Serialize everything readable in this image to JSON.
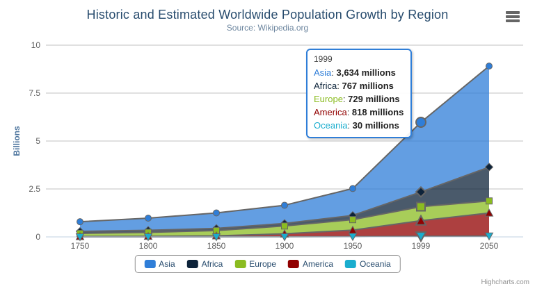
{
  "chart_data": {
    "type": "area",
    "stacking": "normal",
    "title": "Historic and Estimated Worldwide Population Growth by Region",
    "subtitle": "Source: Wikipedia.org",
    "xlabel": "",
    "ylabel": "Billions",
    "ylim": [
      0,
      10
    ],
    "yticks": [
      0,
      2.5,
      5,
      7.5,
      10
    ],
    "grid": true,
    "legend_position": "bottom",
    "values_unit": "millions",
    "plot_divisor": 1000,
    "fill_opacity": 0.75,
    "series_line_color": "#666666",
    "categories": [
      "1750",
      "1800",
      "1850",
      "1900",
      "1950",
      "1999",
      "2050"
    ],
    "series": [
      {
        "name": "Asia",
        "color": "#2f7ed8",
        "marker": "circle",
        "values": [
          502,
          635,
          809,
          947,
          1402,
          3634,
          5268
        ]
      },
      {
        "name": "Africa",
        "color": "#0d233a",
        "marker": "diamond",
        "values": [
          106,
          107,
          111,
          133,
          221,
          767,
          1766
        ]
      },
      {
        "name": "Europe",
        "color": "#8bbc21",
        "marker": "square",
        "values": [
          163,
          203,
          276,
          408,
          547,
          729,
          628
        ]
      },
      {
        "name": "America",
        "color": "#910000",
        "marker": "triangle",
        "values": [
          18,
          31,
          54,
          156,
          339,
          818,
          1201
        ]
      },
      {
        "name": "Oceania",
        "color": "#1aadce",
        "marker": "triangle-down",
        "values": [
          2,
          2,
          2,
          6,
          13,
          30,
          46
        ]
      }
    ],
    "hover": {
      "index": 5,
      "category": "1999"
    }
  },
  "tooltip": {
    "header": "1999",
    "border_color": "#2f7ed8",
    "rows": [
      {
        "name": "Asia",
        "color": "#2f7ed8",
        "value": "3,634 millions"
      },
      {
        "name": "Africa",
        "color": "#0d233a",
        "value": "767 millions"
      },
      {
        "name": "Europe",
        "color": "#8bbc21",
        "value": "729 millions"
      },
      {
        "name": "America",
        "color": "#910000",
        "value": "818 millions"
      },
      {
        "name": "Oceania",
        "color": "#1aadce",
        "value": "30 millions"
      }
    ]
  },
  "legend": {
    "items": [
      "Asia",
      "Africa",
      "Europe",
      "America",
      "Oceania"
    ]
  },
  "icons": {
    "context_menu": "hamburger-menu-icon"
  },
  "credits": "Highcharts.com"
}
